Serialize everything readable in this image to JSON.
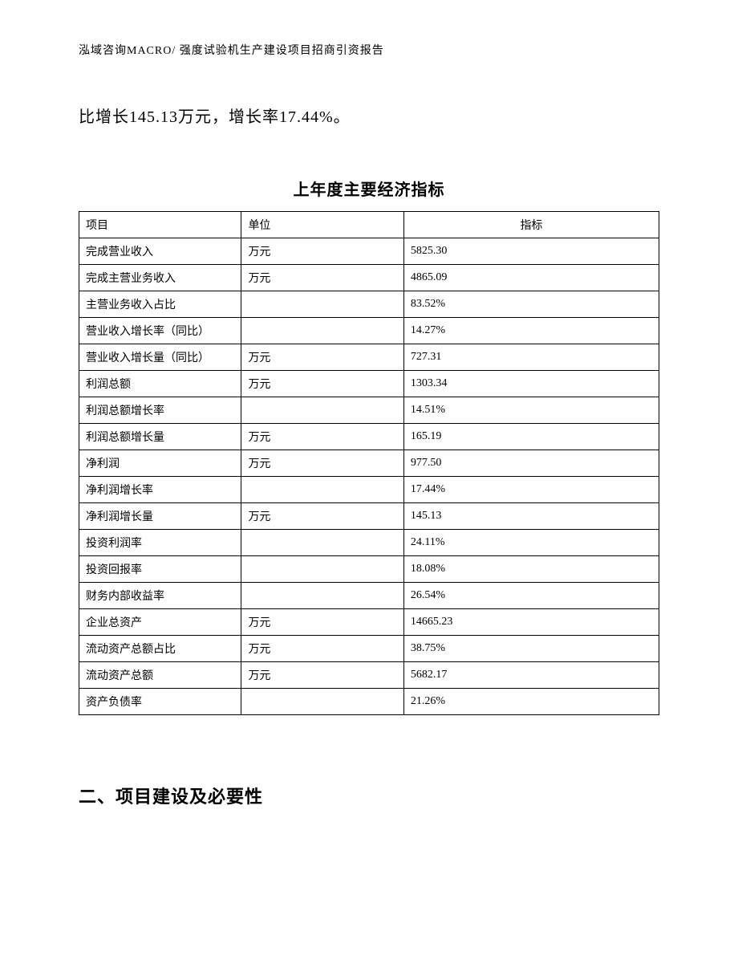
{
  "header": "泓域咨询MACRO/ 强度试验机生产建设项目招商引资报告",
  "body_text": "比增长145.13万元，增长率17.44%。",
  "table": {
    "title": "上年度主要经济指标",
    "columns": [
      "项目",
      "单位",
      "指标"
    ],
    "rows": [
      {
        "item": "完成营业收入",
        "unit": "万元",
        "value": "5825.30"
      },
      {
        "item": "完成主营业务收入",
        "unit": "万元",
        "value": "4865.09"
      },
      {
        "item": "主营业务收入占比",
        "unit": "",
        "value": "83.52%"
      },
      {
        "item": "营业收入增长率（同比）",
        "unit": "",
        "value": "14.27%"
      },
      {
        "item": "营业收入增长量（同比）",
        "unit": "万元",
        "value": "727.31"
      },
      {
        "item": "利润总额",
        "unit": "万元",
        "value": "1303.34"
      },
      {
        "item": "利润总额增长率",
        "unit": "",
        "value": "14.51%"
      },
      {
        "item": "利润总额增长量",
        "unit": "万元",
        "value": "165.19"
      },
      {
        "item": "净利润",
        "unit": "万元",
        "value": "977.50"
      },
      {
        "item": "净利润增长率",
        "unit": "",
        "value": "17.44%"
      },
      {
        "item": "净利润增长量",
        "unit": "万元",
        "value": "145.13"
      },
      {
        "item": "投资利润率",
        "unit": "",
        "value": "24.11%"
      },
      {
        "item": "投资回报率",
        "unit": "",
        "value": "18.08%"
      },
      {
        "item": "财务内部收益率",
        "unit": "",
        "value": "26.54%"
      },
      {
        "item": "企业总资产",
        "unit": "万元",
        "value": "14665.23"
      },
      {
        "item": "流动资产总额占比",
        "unit": "万元",
        "value": "38.75%"
      },
      {
        "item": "流动资产总额",
        "unit": "万元",
        "value": "5682.17"
      },
      {
        "item": "资产负债率",
        "unit": "",
        "value": "21.26%"
      }
    ]
  },
  "section_heading": "二、项目建设及必要性"
}
